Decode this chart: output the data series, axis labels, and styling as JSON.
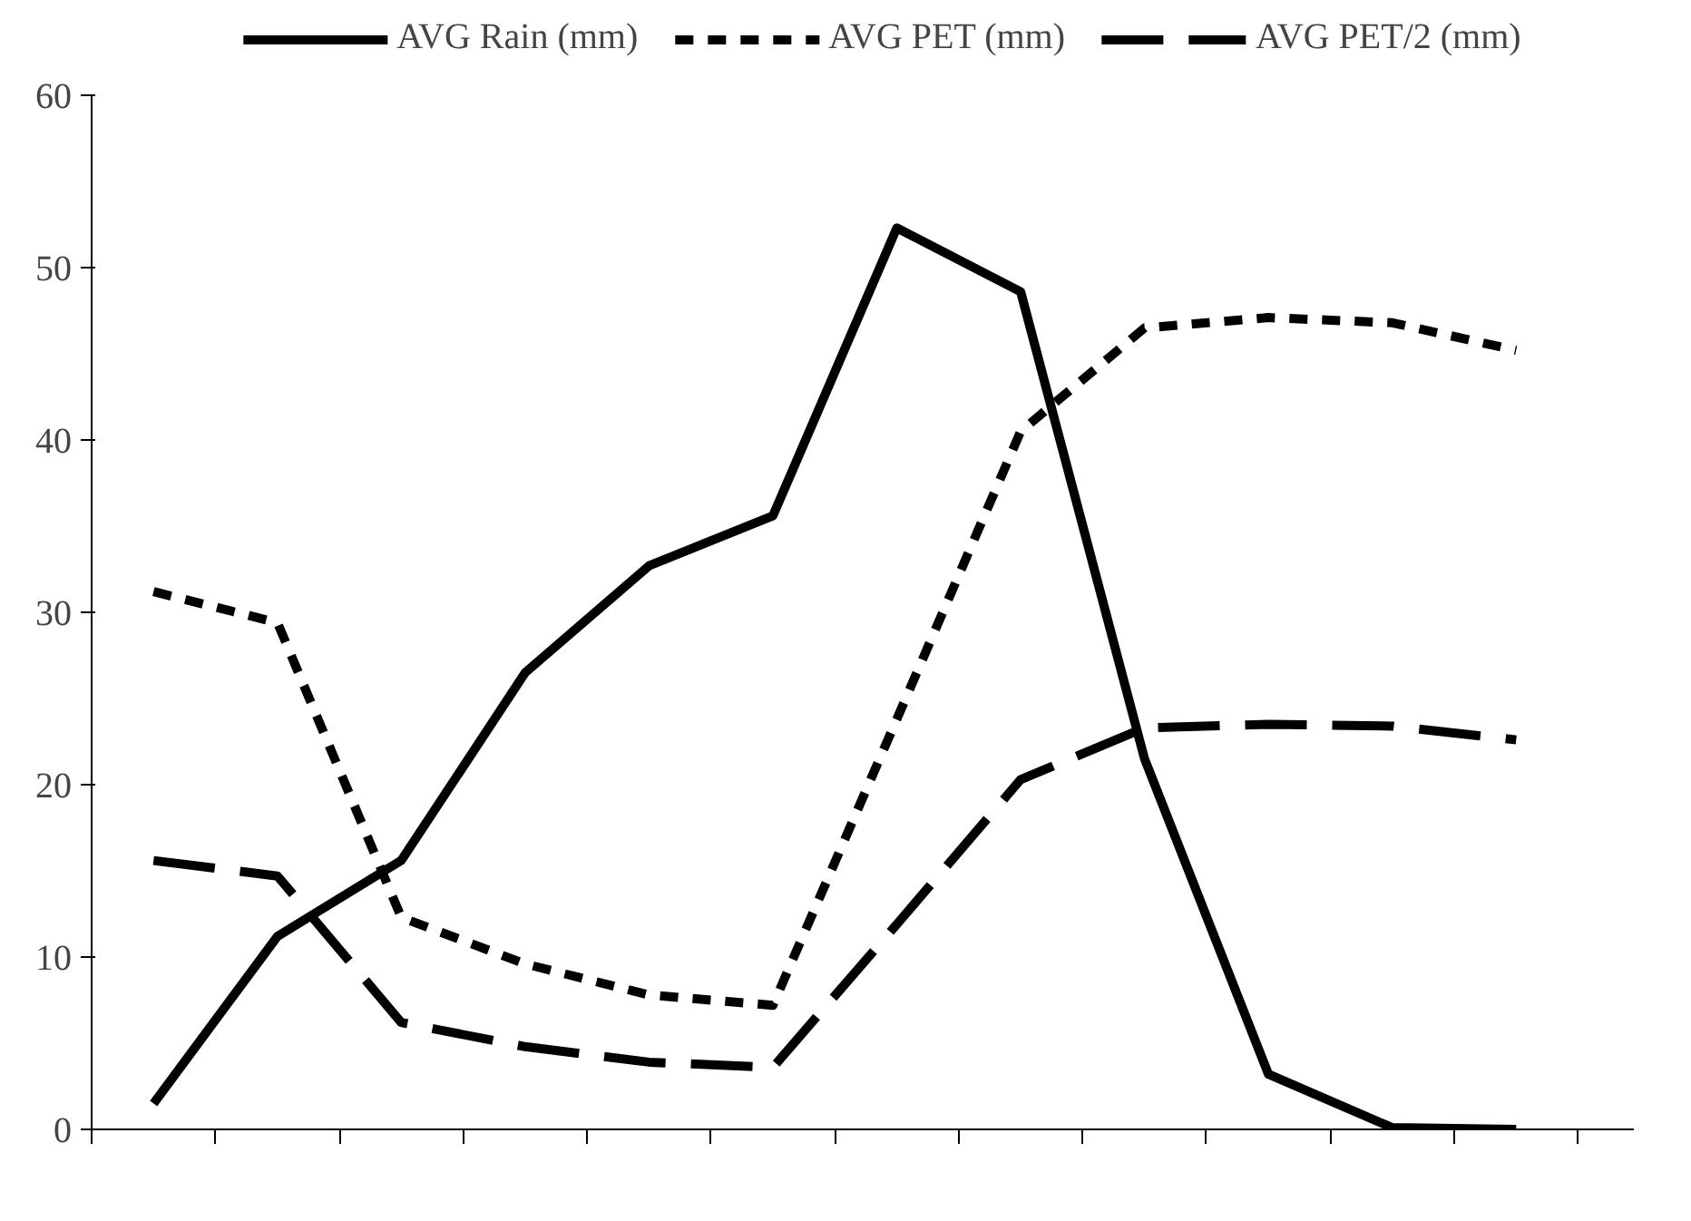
{
  "chart_data": {
    "type": "line",
    "categories": [
      null,
      null,
      null,
      null,
      null,
      null,
      null,
      null,
      null,
      null,
      null,
      null
    ],
    "series": [
      {
        "name": "AVG Rain (mm)",
        "color": "#000000",
        "line_style": "solid",
        "values": [
          1.5,
          11.2,
          15.6,
          26.5,
          32.7,
          35.6,
          52.3,
          48.6,
          21.5,
          3.2,
          0.1,
          0.0
        ]
      },
      {
        "name": "AVG PET (mm)",
        "color": "#000000",
        "line_style": "dotted",
        "values": [
          31.2,
          29.4,
          12.3,
          9.6,
          7.8,
          7.2,
          23.8,
          40.5,
          46.5,
          47.1,
          46.8,
          45.2
        ]
      },
      {
        "name": "AVG PET/2 (mm)",
        "color": "#000000",
        "line_style": "dashed",
        "values": [
          15.6,
          14.7,
          6.2,
          4.8,
          3.9,
          3.6,
          11.9,
          20.3,
          23.3,
          23.5,
          23.4,
          22.6
        ]
      }
    ],
    "ylim": [
      0,
      60
    ],
    "yticks": [
      0,
      10,
      20,
      30,
      40,
      50,
      60
    ],
    "grid": false,
    "legend": "top",
    "marker": "none"
  }
}
